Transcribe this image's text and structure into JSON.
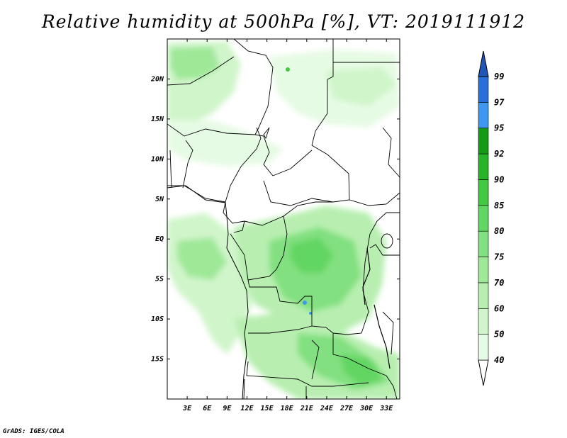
{
  "title": "Relative humidity at 500hPa [%], VT: 2019111912",
  "credit": "GrADS: IGES/COLA",
  "map": {
    "lon_range": [
      0,
      35
    ],
    "lat_range": [
      -20,
      25
    ],
    "x_ticks": [
      "3E",
      "6E",
      "9E",
      "12E",
      "15E",
      "18E",
      "21E",
      "24E",
      "27E",
      "30E",
      "33E"
    ],
    "y_ticks": [
      "20N",
      "15N",
      "10N",
      "5N",
      "EQ",
      "5S",
      "10S",
      "15S"
    ]
  },
  "colorbar": {
    "levels": [
      "40",
      "50",
      "60",
      "70",
      "75",
      "80",
      "85",
      "90",
      "92",
      "95",
      "97",
      "99"
    ],
    "colors": [
      "#ffffff",
      "#e6fbe4",
      "#d0f5ca",
      "#b8efb0",
      "#9ee898",
      "#82e080",
      "#62d662",
      "#42c942",
      "#28b428",
      "#149a14",
      "#3f98ee",
      "#2a6fd8",
      "#1f56b8"
    ]
  }
}
